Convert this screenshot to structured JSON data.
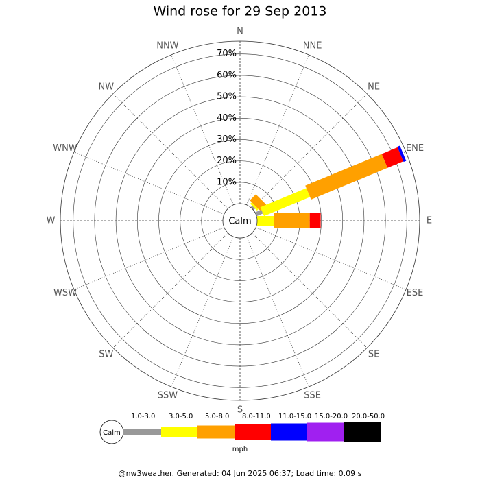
{
  "chart_data": {
    "type": "windrose",
    "title": "Wind rose for 29 Sep 2013",
    "directions": [
      "N",
      "NNE",
      "NE",
      "ENE",
      "E",
      "ESE",
      "SE",
      "SSE",
      "S",
      "SSW",
      "SW",
      "WSW",
      "W",
      "WNW",
      "NW",
      "NNW"
    ],
    "calm_label": "Calm",
    "rlim": [
      0,
      76
    ],
    "rticks": [
      {
        "value": 10,
        "label": "10%"
      },
      {
        "value": 20,
        "label": "20%"
      },
      {
        "value": 30,
        "label": "30%"
      },
      {
        "value": 40,
        "label": "40%"
      },
      {
        "value": 50,
        "label": "50%"
      },
      {
        "value": 60,
        "label": "60%"
      },
      {
        "value": 70,
        "label": "70%"
      }
    ],
    "unit": "mph",
    "series": [
      {
        "name": "1.0-3.0",
        "color": "#999999",
        "values": [
          0,
          0,
          1.0,
          3.2,
          0,
          0,
          0,
          0,
          0,
          0,
          0,
          0,
          0,
          0,
          0,
          0
        ]
      },
      {
        "name": "3.0-5.0",
        "color": "#ffff00",
        "values": [
          0,
          0,
          1.0,
          23.3,
          8.0,
          0,
          0,
          0,
          0,
          0,
          0,
          0,
          0,
          0,
          0,
          0
        ]
      },
      {
        "name": "5.0-8.0",
        "color": "#ffa000",
        "values": [
          0,
          0,
          4.0,
          38.7,
          16.6,
          0,
          0,
          0,
          0,
          0,
          0,
          0,
          0,
          0,
          0,
          0
        ]
      },
      {
        "name": "8.0-11.0",
        "color": "#ff0000",
        "values": [
          0,
          0,
          0,
          8.0,
          5.1,
          0,
          0,
          0,
          0,
          0,
          0,
          0,
          0,
          0,
          0,
          0
        ]
      },
      {
        "name": "11.0-15.0",
        "color": "#0000ff",
        "values": [
          0,
          0,
          0,
          1.3,
          0,
          0,
          0,
          0,
          0,
          0,
          0,
          0,
          0,
          0,
          0,
          0
        ]
      },
      {
        "name": "15.0-20.0",
        "color": "#a020f0",
        "values": [
          0,
          0,
          0,
          0,
          0,
          0,
          0,
          0,
          0,
          0,
          0,
          0,
          0,
          0,
          0,
          0
        ]
      },
      {
        "name": "20.0-50.0",
        "color": "#000000",
        "values": [
          0,
          0,
          0,
          0,
          0,
          0,
          0,
          0,
          0,
          0,
          0,
          0,
          0,
          0,
          0,
          0
        ]
      }
    ],
    "footer": "@nw3weather. Generated: 04 Jun 2025 06:37; Load time: 0.09 s"
  }
}
